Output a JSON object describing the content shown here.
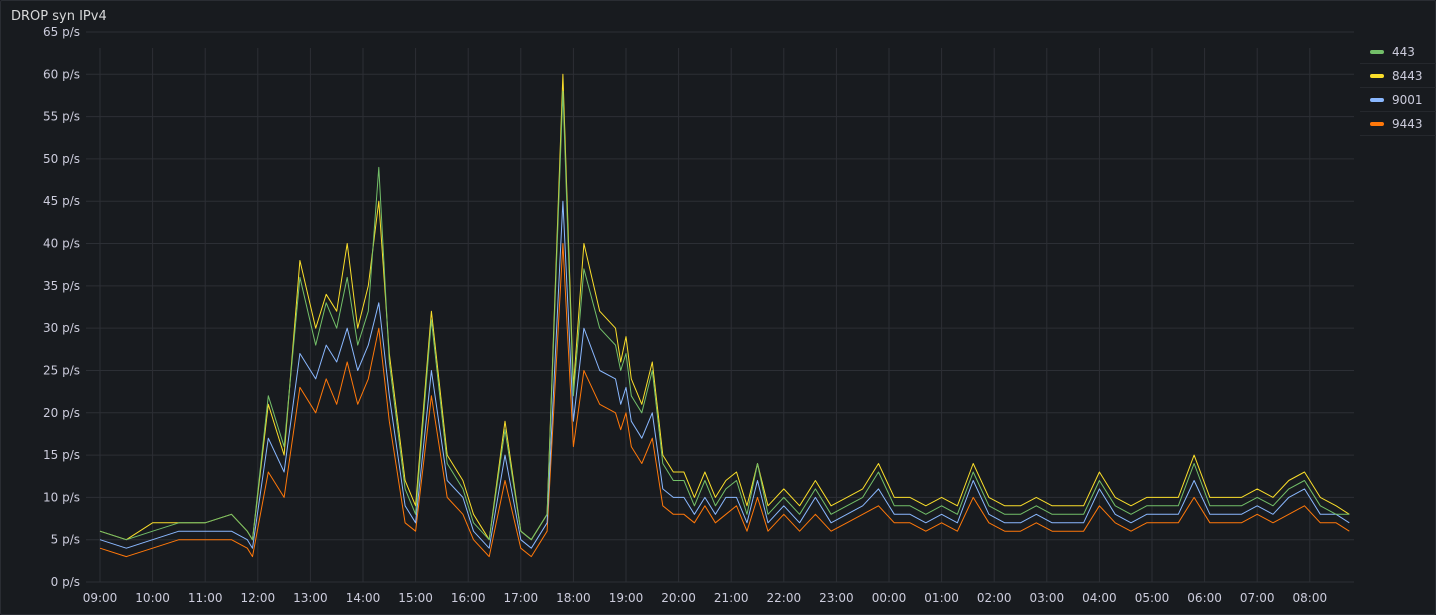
{
  "panel": {
    "title": "DROP syn IPv4"
  },
  "chart_data": {
    "type": "line",
    "title": "DROP syn IPv4",
    "y_unit": "p/s",
    "ylim": [
      0,
      65
    ],
    "y_ticks": [
      "0 p/s",
      "5 p/s",
      "10 p/s",
      "15 p/s",
      "20 p/s",
      "25 p/s",
      "30 p/s",
      "35 p/s",
      "40 p/s",
      "45 p/s",
      "50 p/s",
      "55 p/s",
      "60 p/s",
      "65 p/s"
    ],
    "x_ticks": [
      "09:00",
      "10:00",
      "11:00",
      "12:00",
      "13:00",
      "14:00",
      "15:00",
      "16:00",
      "17:00",
      "18:00",
      "19:00",
      "20:00",
      "21:00",
      "22:00",
      "23:00",
      "00:00",
      "01:00",
      "02:00",
      "03:00",
      "04:00",
      "05:00",
      "06:00",
      "07:00",
      "08:00"
    ],
    "grid": true,
    "legend_position": "right",
    "x_hours": [
      0,
      0.5,
      1,
      1.5,
      2,
      2.5,
      2.8,
      2.9,
      3.2,
      3.5,
      3.8,
      4.1,
      4.3,
      4.5,
      4.7,
      4.9,
      5.1,
      5.3,
      5.5,
      5.8,
      6,
      6.3,
      6.6,
      6.9,
      7.1,
      7.4,
      7.7,
      8,
      8.2,
      8.5,
      8.8,
      9,
      9.2,
      9.5,
      9.8,
      9.9,
      10,
      10.1,
      10.3,
      10.5,
      10.7,
      10.9,
      11.1,
      11.3,
      11.5,
      11.7,
      11.9,
      12.1,
      12.3,
      12.5,
      12.7,
      13,
      13.3,
      13.6,
      13.9,
      14.2,
      14.5,
      14.8,
      15.1,
      15.4,
      15.7,
      16,
      16.3,
      16.6,
      16.9,
      17.2,
      17.5,
      17.8,
      18.1,
      18.4,
      18.7,
      19,
      19.3,
      19.6,
      19.9,
      20.2,
      20.5,
      20.8,
      21.1,
      21.4,
      21.7,
      22,
      22.3,
      22.6,
      22.9,
      23.2,
      23.5,
      23.75
    ],
    "series": [
      {
        "name": "443",
        "color": "#73bf69",
        "values": [
          6,
          5,
          6,
          7,
          7,
          8,
          6,
          5,
          22,
          16,
          36,
          28,
          33,
          30,
          36,
          28,
          32,
          49,
          26,
          11,
          8,
          31,
          14,
          11,
          7,
          5,
          18,
          6,
          5,
          8,
          58,
          22,
          37,
          30,
          28,
          25,
          27,
          22,
          20,
          25,
          14,
          12,
          12,
          9,
          12,
          9,
          11,
          12,
          8,
          14,
          8,
          10,
          8,
          11,
          8,
          9,
          10,
          13,
          9,
          9,
          8,
          9,
          8,
          13,
          9,
          8,
          8,
          9,
          8,
          8,
          8,
          12,
          9,
          8,
          9,
          9,
          9,
          14,
          9,
          9,
          9,
          10,
          9,
          11,
          12,
          9,
          8,
          8
        ]
      },
      {
        "name": "8443",
        "color": "#fade2a",
        "values": [
          6,
          5,
          7,
          7,
          7,
          8,
          6,
          5,
          21,
          15,
          38,
          30,
          34,
          32,
          40,
          30,
          35,
          45,
          27,
          12,
          9,
          32,
          15,
          12,
          8,
          5,
          19,
          6,
          5,
          8,
          60,
          23,
          40,
          32,
          30,
          26,
          29,
          24,
          21,
          26,
          15,
          13,
          13,
          10,
          13,
          10,
          12,
          13,
          9,
          14,
          9,
          11,
          9,
          12,
          9,
          10,
          11,
          14,
          10,
          10,
          9,
          10,
          9,
          14,
          10,
          9,
          9,
          10,
          9,
          9,
          9,
          13,
          10,
          9,
          10,
          10,
          10,
          15,
          10,
          10,
          10,
          11,
          10,
          12,
          13,
          10,
          9,
          8
        ]
      },
      {
        "name": "9001",
        "color": "#8ab8ff",
        "values": [
          5,
          4,
          5,
          6,
          6,
          6,
          5,
          4,
          17,
          13,
          27,
          24,
          28,
          26,
          30,
          25,
          28,
          33,
          22,
          9,
          7,
          25,
          12,
          10,
          6,
          4,
          15,
          5,
          4,
          7,
          45,
          19,
          30,
          25,
          24,
          21,
          23,
          19,
          17,
          20,
          11,
          10,
          10,
          8,
          10,
          8,
          10,
          10,
          7,
          12,
          7,
          9,
          7,
          10,
          7,
          8,
          9,
          11,
          8,
          8,
          7,
          8,
          7,
          12,
          8,
          7,
          7,
          8,
          7,
          7,
          7,
          11,
          8,
          7,
          8,
          8,
          8,
          12,
          8,
          8,
          8,
          9,
          8,
          10,
          11,
          8,
          8,
          7
        ]
      },
      {
        "name": "9443",
        "color": "#ff780a",
        "values": [
          4,
          3,
          4,
          5,
          5,
          5,
          4,
          3,
          13,
          10,
          23,
          20,
          24,
          21,
          26,
          21,
          24,
          30,
          19,
          7,
          6,
          22,
          10,
          8,
          5,
          3,
          12,
          4,
          3,
          6,
          40,
          16,
          25,
          21,
          20,
          18,
          20,
          16,
          14,
          17,
          9,
          8,
          8,
          7,
          9,
          7,
          8,
          9,
          6,
          10,
          6,
          8,
          6,
          8,
          6,
          7,
          8,
          9,
          7,
          7,
          6,
          7,
          6,
          10,
          7,
          6,
          6,
          7,
          6,
          6,
          6,
          9,
          7,
          6,
          7,
          7,
          7,
          10,
          7,
          7,
          7,
          8,
          7,
          8,
          9,
          7,
          7,
          6
        ]
      }
    ]
  }
}
